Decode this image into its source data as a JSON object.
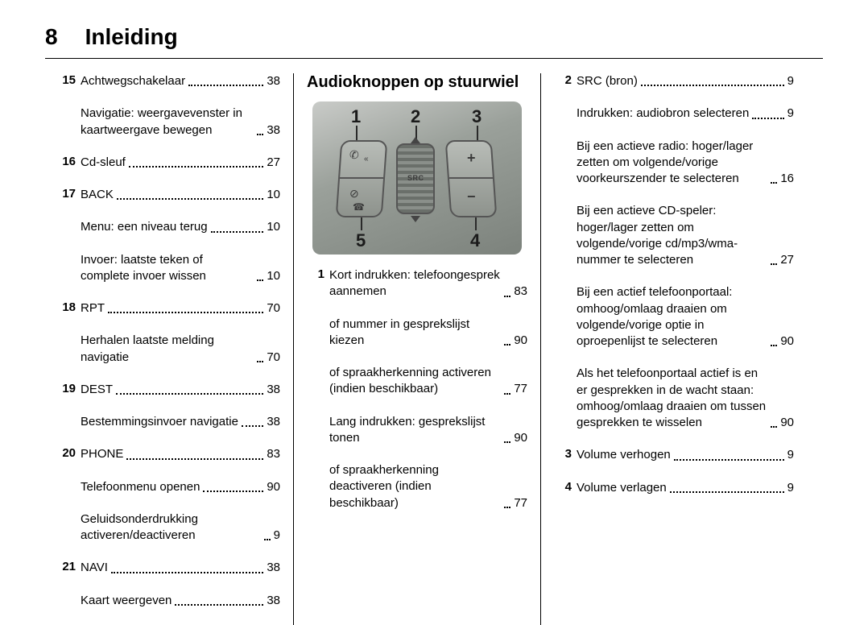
{
  "page_number": "8",
  "page_title": "Inleiding",
  "col1": [
    {
      "num": "15",
      "entries": [
        {
          "text": "Achtwegschakelaar",
          "page": "38"
        },
        {
          "text": "Navigatie: weergavevenster in kaartweergave bewegen",
          "page": "38"
        }
      ]
    },
    {
      "num": "16",
      "entries": [
        {
          "text": "Cd-sleuf",
          "page": "27"
        }
      ]
    },
    {
      "num": "17",
      "entries": [
        {
          "text": "BACK",
          "page": "10"
        },
        {
          "text": "Menu: een niveau terug",
          "page": "10"
        },
        {
          "text": "Invoer: laatste teken of complete invoer wissen",
          "page": "10"
        }
      ]
    },
    {
      "num": "18",
      "entries": [
        {
          "text": "RPT",
          "page": "70"
        },
        {
          "text": "Herhalen laatste melding navigatie",
          "page": "70"
        }
      ]
    },
    {
      "num": "19",
      "entries": [
        {
          "text": "DEST",
          "page": "38"
        },
        {
          "text": "Bestemmingsinvoer navigatie",
          "page": "38"
        }
      ]
    },
    {
      "num": "20",
      "entries": [
        {
          "text": "PHONE",
          "page": "83"
        },
        {
          "text": "Telefoonmenu openen",
          "page": "90"
        },
        {
          "text": "Geluidsonderdrukking activeren/deactiveren",
          "page": "9"
        }
      ]
    },
    {
      "num": "21",
      "entries": [
        {
          "text": "NAVI",
          "page": "38"
        },
        {
          "text": "Kaart weergeven",
          "page": "38"
        }
      ]
    }
  ],
  "section_title": "Audioknoppen op stuurwiel",
  "diagram": {
    "callouts": [
      "1",
      "2",
      "3",
      "4",
      "5"
    ],
    "src_label": "SRC",
    "background_colors": [
      "#c9cbc8",
      "#9aa09a",
      "#7c827c"
    ],
    "button_border": "#555555",
    "button_fill": [
      "#b8bcb7",
      "#8e938d"
    ],
    "wheel_stripes": [
      "#6a6f6a",
      "#8a8f8a"
    ],
    "callout_fontsize": 22,
    "callout_color": "#1a1a1a"
  },
  "col2": [
    {
      "num": "1",
      "entries": [
        {
          "text": "Kort indrukken: telefoongesprek aannemen",
          "page": "83"
        },
        {
          "text": "of nummer in gesprekslijst kiezen",
          "page": "90"
        },
        {
          "text": "of spraakherkenning activeren (indien beschikbaar)",
          "page": "77"
        },
        {
          "text": "Lang indrukken: gesprekslijst tonen",
          "page": "90"
        },
        {
          "text": "of spraakherkenning deactiveren (indien beschikbaar)",
          "page": "77"
        }
      ]
    }
  ],
  "col3": [
    {
      "num": "2",
      "entries": [
        {
          "text": "SRC (bron)",
          "page": "9"
        },
        {
          "text": "Indrukken: audiobron selecteren",
          "page": "9"
        },
        {
          "text": "Bij een actieve radio: hoger/lager zetten om volgende/vorige voorkeurszender te selecteren",
          "page": "16"
        },
        {
          "text": "Bij een actieve CD-speler: hoger/lager zetten om volgende/vorige cd/mp3/wma-nummer te selecteren",
          "page": "27"
        },
        {
          "text": "Bij een actief telefoonportaal: omhoog/omlaag draaien om volgende/vorige optie in oproepenlijst te selecteren",
          "page": "90"
        },
        {
          "text": "Als het telefoonportaal actief is en er gesprekken in de wacht staan: omhoog/omlaag draaien om tussen gesprekken te wisselen",
          "page": "90"
        }
      ]
    },
    {
      "num": "3",
      "entries": [
        {
          "text": "Volume verhogen",
          "page": "9"
        }
      ]
    },
    {
      "num": "4",
      "entries": [
        {
          "text": "Volume verlagen",
          "page": "9"
        }
      ]
    }
  ]
}
